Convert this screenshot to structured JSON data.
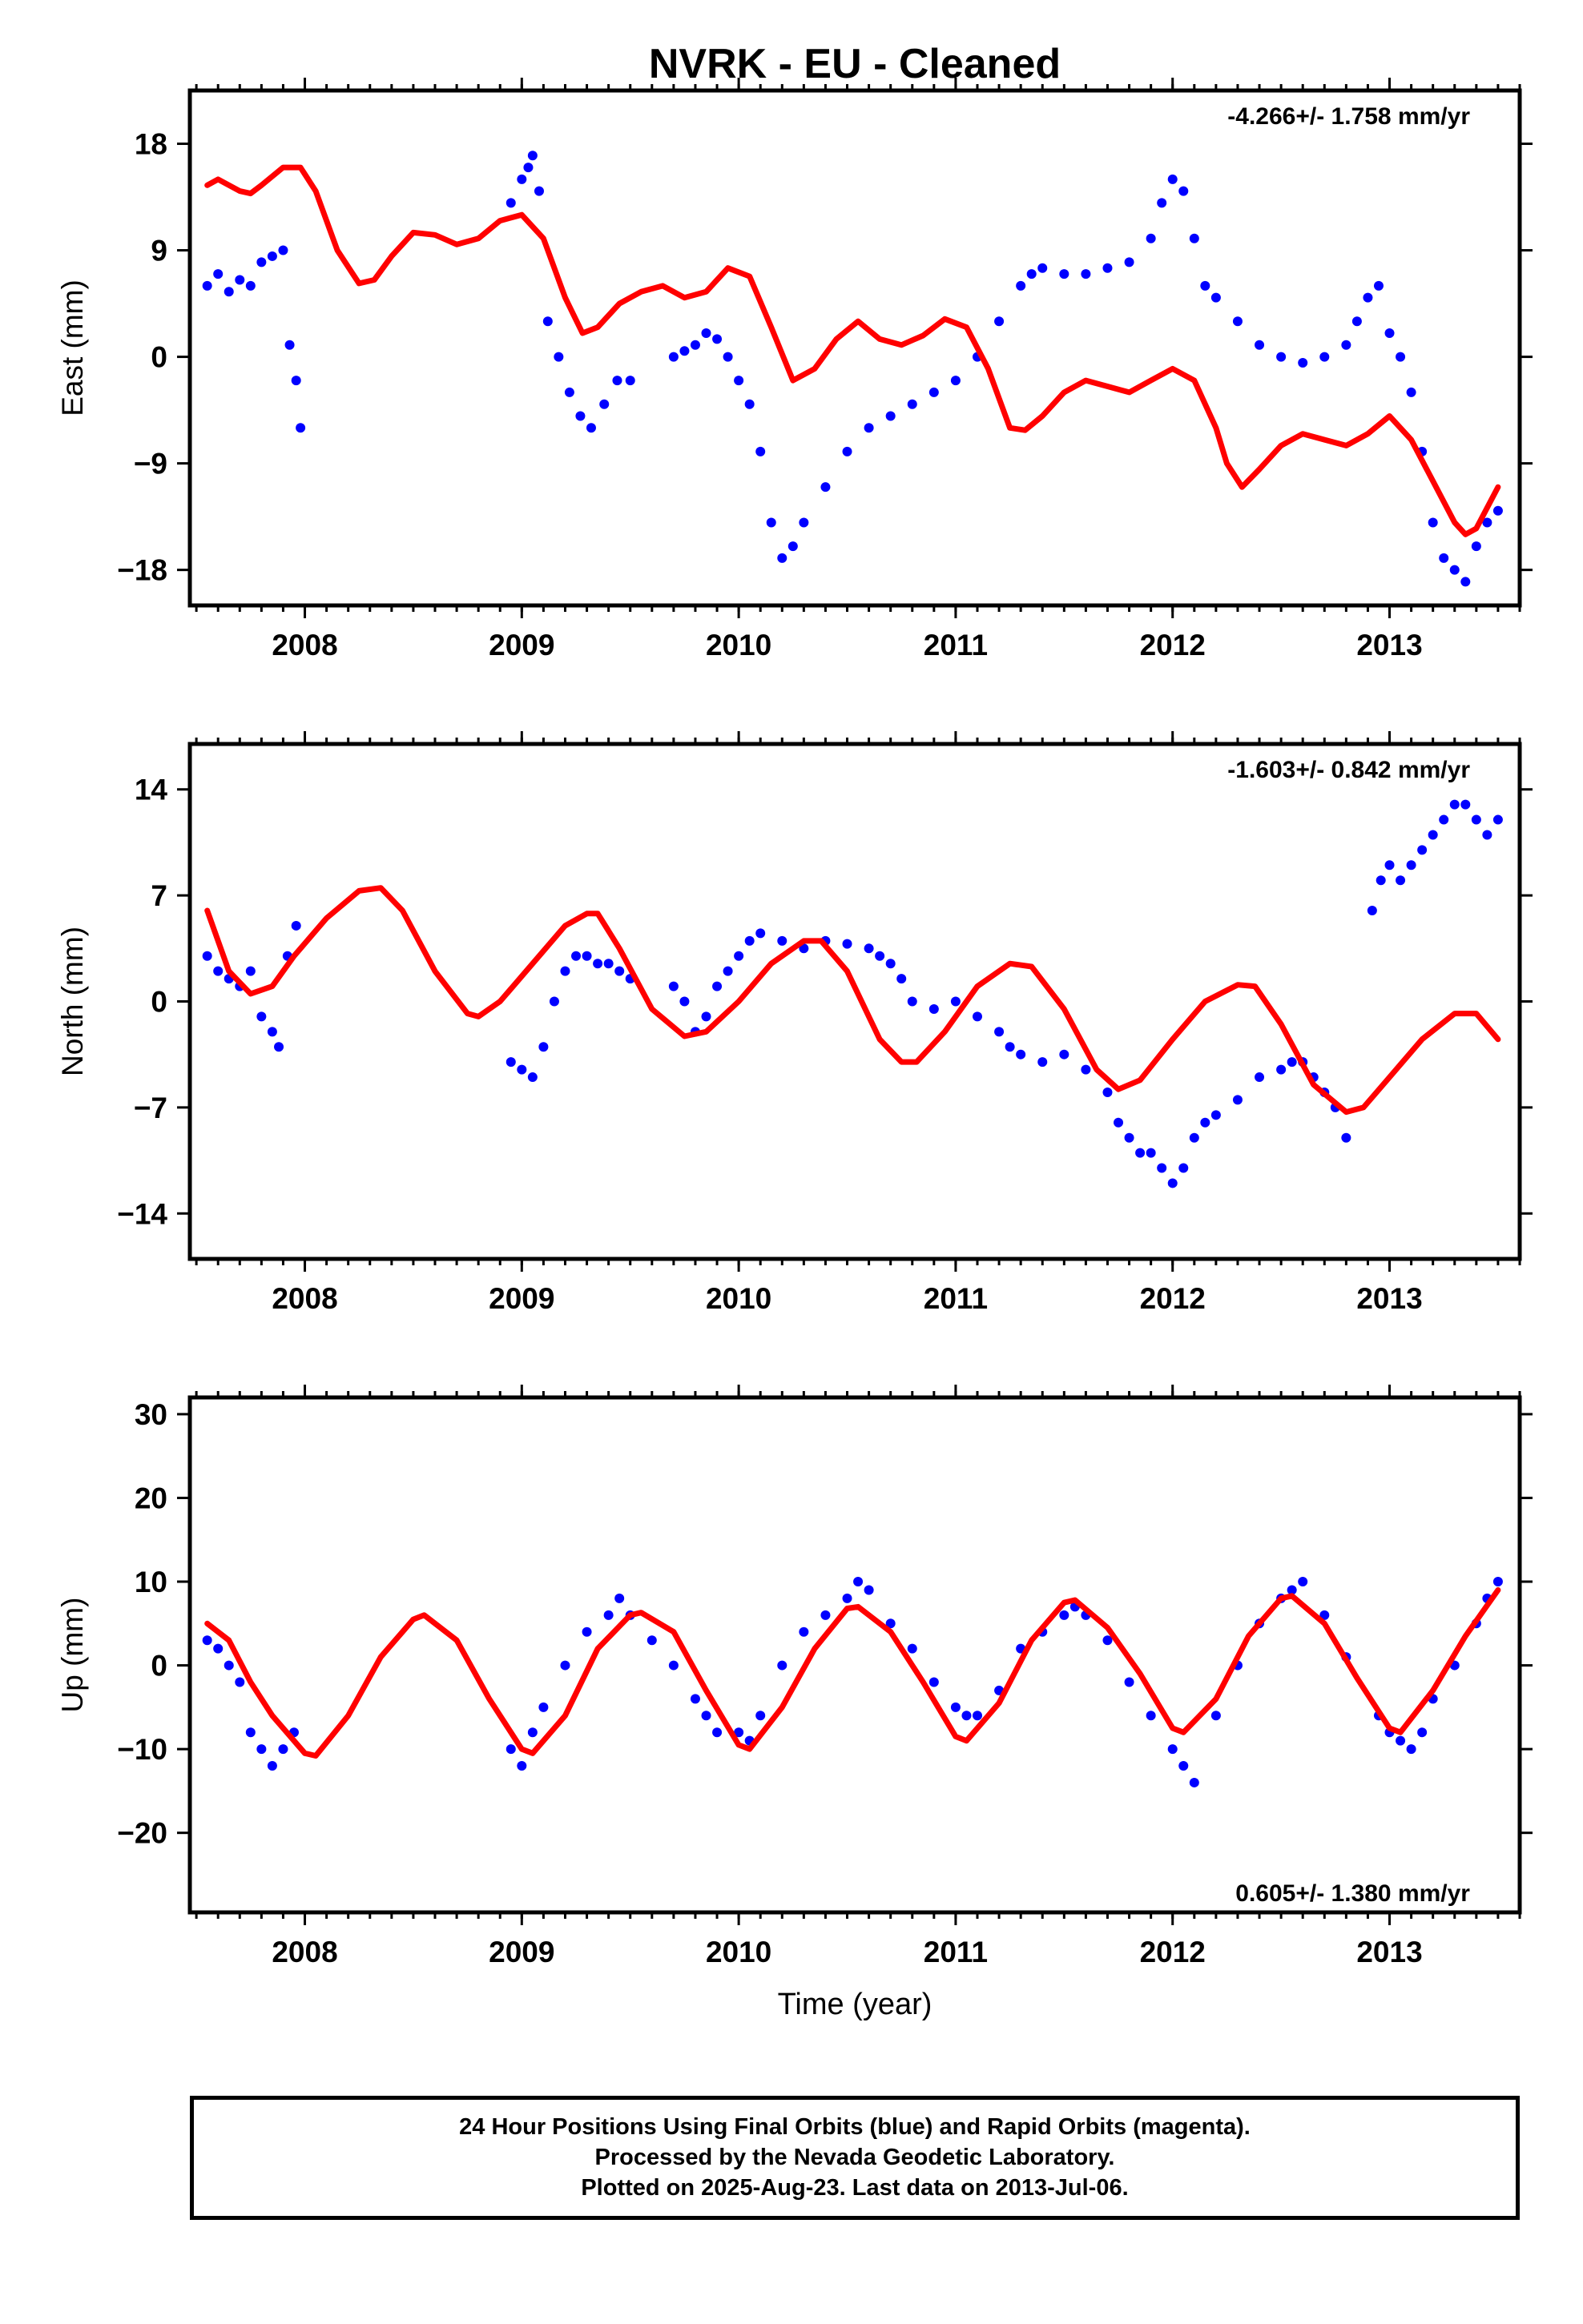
{
  "title": "NVRK  - EU - Cleaned",
  "xlabel": "Time (year)",
  "colors": {
    "data": "#0000ff",
    "model": "#ff0000",
    "axes": "#000000"
  },
  "caption": {
    "line1": "24 Hour Positions Using Final Orbits (blue) and Rapid Orbits (magenta).",
    "line2": "Processed by the Nevada Geodetic Laboratory.",
    "line3": "Plotted on 2025-Aug-23. Last data on 2013-Jul-06."
  },
  "chart_data": [
    {
      "type": "scatter",
      "panel": "east",
      "ylabel": "East (mm)",
      "rate_label": "-4.266+/- 1.758 mm/yr",
      "rate_label_position": "top-right",
      "xlim": [
        2007.47,
        2013.6
      ],
      "ylim": [
        -21,
        22.5
      ],
      "x_ticks": [
        2008,
        2009,
        2010,
        2011,
        2012,
        2013
      ],
      "y_ticks": [
        18,
        9,
        0,
        -9,
        -18
      ],
      "y_tick_labels": [
        "18",
        "9",
        "0",
        "−9",
        "−18"
      ],
      "grid": false,
      "series": [
        {
          "role": "observed",
          "marker": "dot",
          "color": "#0000ff",
          "x": [
            2007.55,
            2007.6,
            2007.65,
            2007.7,
            2007.75,
            2007.8,
            2007.85,
            2007.9,
            2007.93,
            2007.96,
            2007.98,
            2008.95,
            2009.0,
            2009.03,
            2009.05,
            2009.08,
            2009.12,
            2009.17,
            2009.22,
            2009.27,
            2009.32,
            2009.38,
            2009.44,
            2009.5,
            2009.7,
            2009.75,
            2009.8,
            2009.85,
            2009.9,
            2009.95,
            2010.0,
            2010.05,
            2010.1,
            2010.15,
            2010.2,
            2010.25,
            2010.3,
            2010.4,
            2010.5,
            2010.6,
            2010.7,
            2010.8,
            2010.9,
            2011.0,
            2011.1,
            2011.2,
            2011.3,
            2011.35,
            2011.4,
            2011.5,
            2011.6,
            2011.7,
            2011.8,
            2011.9,
            2011.95,
            2012.0,
            2012.05,
            2012.1,
            2012.15,
            2012.2,
            2012.3,
            2012.4,
            2012.5,
            2012.6,
            2012.7,
            2012.8,
            2012.85,
            2012.9,
            2012.95,
            2013.0,
            2013.05,
            2013.1,
            2013.15,
            2013.2,
            2013.25,
            2013.3,
            2013.35,
            2013.4,
            2013.45,
            2013.5
          ],
          "y": [
            6,
            7,
            5.5,
            6.5,
            6,
            8,
            8.5,
            9,
            1,
            -2,
            -6,
            13,
            15,
            16,
            17,
            14,
            3,
            0,
            -3,
            -5,
            -6,
            -4,
            -2,
            -2,
            0,
            0.5,
            1,
            2,
            1.5,
            0,
            -2,
            -4,
            -8,
            -14,
            -17,
            -16,
            -14,
            -11,
            -8,
            -6,
            -5,
            -4,
            -3,
            -2,
            0,
            3,
            6,
            7,
            7.5,
            7,
            7,
            7.5,
            8,
            10,
            13,
            15,
            14,
            10,
            6,
            5,
            3,
            1,
            0,
            -0.5,
            0,
            1,
            3,
            5,
            6,
            2,
            0,
            -3,
            -8,
            -14,
            -17,
            -18,
            -19,
            -16,
            -14,
            -13
          ]
        },
        {
          "role": "model",
          "color": "#ff0000",
          "x": [
            2007.55,
            2007.6,
            2007.7,
            2007.75,
            2007.8,
            2007.9,
            2007.98,
            2008.05,
            2008.15,
            2008.25,
            2008.32,
            2008.4,
            2008.5,
            2008.6,
            2008.7,
            2008.8,
            2008.9,
            2009.0,
            2009.1,
            2009.2,
            2009.28,
            2009.35,
            2009.45,
            2009.55,
            2009.65,
            2009.75,
            2009.85,
            2009.95,
            2010.05,
            2010.15,
            2010.25,
            2010.35,
            2010.45,
            2010.55,
            2010.65,
            2010.75,
            2010.85,
            2010.95,
            2011.05,
            2011.15,
            2011.25,
            2011.32,
            2011.4,
            2011.5,
            2011.6,
            2011.7,
            2011.8,
            2011.9,
            2012.0,
            2012.1,
            2012.2,
            2012.25,
            2012.32,
            2012.4,
            2012.5,
            2012.6,
            2012.7,
            2012.8,
            2012.9,
            2013.0,
            2013.1,
            2013.2,
            2013.3,
            2013.35,
            2013.4,
            2013.5
          ],
          "y": [
            14.5,
            15,
            14,
            13.8,
            14.5,
            16,
            16,
            14,
            9,
            6.2,
            6.5,
            8.5,
            10.5,
            10.3,
            9.5,
            10,
            11.5,
            12,
            10,
            5,
            2,
            2.5,
            4.5,
            5.5,
            6,
            5,
            5.5,
            7.5,
            6.8,
            2.5,
            -2,
            -1,
            1.5,
            3,
            1.5,
            1,
            1.8,
            3.2,
            2.5,
            -1,
            -6,
            -6.2,
            -5,
            -3,
            -2,
            -2.5,
            -3,
            -2,
            -1,
            -2,
            -6,
            -9,
            -11,
            -9.5,
            -7.5,
            -6.5,
            -7,
            -7.5,
            -6.5,
            -5,
            -7,
            -10.5,
            -14,
            -15,
            -14.5,
            -11
          ]
        }
      ]
    },
    {
      "type": "scatter",
      "panel": "north",
      "ylabel": "North (mm)",
      "rate_label": "-1.603+/- 0.842 mm/yr",
      "rate_label_position": "top-right",
      "xlim": [
        2007.47,
        2013.6
      ],
      "ylim": [
        -17,
        17
      ],
      "x_ticks": [
        2008,
        2009,
        2010,
        2011,
        2012,
        2013
      ],
      "y_ticks": [
        14,
        7,
        0,
        -7,
        -14
      ],
      "y_tick_labels": [
        "14",
        "7",
        "0",
        "−7",
        "−14"
      ],
      "grid": false,
      "series": [
        {
          "role": "observed",
          "marker": "dot",
          "color": "#0000ff",
          "x": [
            2007.55,
            2007.6,
            2007.65,
            2007.7,
            2007.75,
            2007.8,
            2007.85,
            2007.88,
            2007.92,
            2007.96,
            2008.95,
            2009.0,
            2009.05,
            2009.1,
            2009.15,
            2009.2,
            2009.25,
            2009.3,
            2009.35,
            2009.4,
            2009.45,
            2009.5,
            2009.7,
            2009.75,
            2009.8,
            2009.85,
            2009.9,
            2009.95,
            2010.0,
            2010.05,
            2010.1,
            2010.2,
            2010.3,
            2010.4,
            2010.5,
            2010.6,
            2010.65,
            2010.7,
            2010.75,
            2010.8,
            2010.9,
            2011.0,
            2011.1,
            2011.2,
            2011.25,
            2011.3,
            2011.4,
            2011.5,
            2011.6,
            2011.7,
            2011.75,
            2011.8,
            2011.85,
            2011.9,
            2011.95,
            2012.0,
            2012.05,
            2012.1,
            2012.15,
            2012.2,
            2012.3,
            2012.4,
            2012.5,
            2012.55,
            2012.6,
            2012.65,
            2012.7,
            2012.75,
            2012.8,
            2012.92,
            2012.96,
            2013.0,
            2013.05,
            2013.1,
            2013.15,
            2013.2,
            2013.25,
            2013.3,
            2013.35,
            2013.4,
            2013.45,
            2013.5
          ],
          "y": [
            3,
            2,
            1.5,
            1,
            2,
            -1,
            -2,
            -3,
            3,
            5,
            -4,
            -4.5,
            -5,
            -3,
            0,
            2,
            3,
            3,
            2.5,
            2.5,
            2,
            1.5,
            1,
            0,
            -2,
            -1,
            1,
            2,
            3,
            4,
            4.5,
            4,
            3.5,
            4,
            3.8,
            3.5,
            3,
            2.5,
            1.5,
            0,
            -0.5,
            0,
            -1,
            -2,
            -3,
            -3.5,
            -4,
            -3.5,
            -4.5,
            -6,
            -8,
            -9,
            -10,
            -10,
            -11,
            -12,
            -11,
            -9,
            -8,
            -7.5,
            -6.5,
            -5,
            -4.5,
            -4,
            -4,
            -5,
            -6,
            -7,
            -9,
            6,
            8,
            9,
            8,
            9,
            10,
            11,
            12,
            13,
            13,
            12,
            11,
            12
          ]
        },
        {
          "role": "model",
          "color": "#ff0000",
          "x": [
            2007.55,
            2007.65,
            2007.75,
            2007.85,
            2007.95,
            2008.1,
            2008.25,
            2008.35,
            2008.45,
            2008.6,
            2008.75,
            2008.8,
            2008.9,
            2009.05,
            2009.2,
            2009.3,
            2009.35,
            2009.45,
            2009.6,
            2009.75,
            2009.85,
            2010.0,
            2010.15,
            2010.3,
            2010.38,
            2010.5,
            2010.65,
            2010.75,
            2010.82,
            2010.95,
            2011.1,
            2011.25,
            2011.35,
            2011.5,
            2011.65,
            2011.75,
            2011.85,
            2012.0,
            2012.15,
            2012.3,
            2012.38,
            2012.5,
            2012.65,
            2012.8,
            2012.88,
            2013.0,
            2013.15,
            2013.3,
            2013.4,
            2013.5
          ],
          "y": [
            6,
            2,
            0.5,
            1,
            3,
            5.5,
            7.3,
            7.5,
            6,
            2,
            -0.8,
            -1,
            0,
            2.5,
            5,
            5.8,
            5.8,
            3.5,
            -0.5,
            -2.3,
            -2,
            0,
            2.5,
            4,
            4,
            2,
            -2.5,
            -4,
            -4,
            -2,
            1,
            2.5,
            2.3,
            -0.5,
            -4.5,
            -5.8,
            -5.2,
            -2.5,
            0,
            1.1,
            1,
            -1.5,
            -5.5,
            -7.3,
            -7,
            -5,
            -2.5,
            -0.8,
            -0.8,
            -2.5
          ]
        }
      ]
    },
    {
      "type": "scatter",
      "panel": "up",
      "ylabel": "Up (mm)",
      "rate_label": "0.605+/- 1.380 mm/yr",
      "rate_label_position": "bottom-right",
      "xlim": [
        2007.47,
        2013.6
      ],
      "ylim": [
        -29.5,
        32
      ],
      "x_ticks": [
        2008,
        2009,
        2010,
        2011,
        2012,
        2013
      ],
      "y_ticks": [
        30,
        20,
        10,
        0,
        -10,
        -20
      ],
      "y_tick_labels": [
        "30",
        "20",
        "10",
        "0",
        "−10",
        "−20"
      ],
      "grid": false,
      "series": [
        {
          "role": "observed",
          "marker": "dot",
          "color": "#0000ff",
          "x": [
            2007.55,
            2007.6,
            2007.65,
            2007.7,
            2007.75,
            2007.8,
            2007.85,
            2007.9,
            2007.95,
            2008.95,
            2009.0,
            2009.05,
            2009.1,
            2009.2,
            2009.3,
            2009.4,
            2009.45,
            2009.5,
            2009.6,
            2009.7,
            2009.8,
            2009.85,
            2009.9,
            2010.0,
            2010.05,
            2010.1,
            2010.2,
            2010.3,
            2010.4,
            2010.5,
            2010.55,
            2010.6,
            2010.7,
            2010.8,
            2010.9,
            2011.0,
            2011.05,
            2011.1,
            2011.2,
            2011.3,
            2011.4,
            2011.5,
            2011.55,
            2011.6,
            2011.7,
            2011.8,
            2011.9,
            2012.0,
            2012.05,
            2012.1,
            2012.2,
            2012.3,
            2012.4,
            2012.5,
            2012.55,
            2012.6,
            2012.7,
            2012.8,
            2012.95,
            2013.0,
            2013.05,
            2013.1,
            2013.15,
            2013.2,
            2013.3,
            2013.4,
            2013.45,
            2013.5
          ],
          "y": [
            3,
            2,
            0,
            -2,
            -8,
            -10,
            -12,
            -10,
            -8,
            -10,
            -12,
            -8,
            -5,
            0,
            4,
            6,
            8,
            6,
            3,
            0,
            -4,
            -6,
            -8,
            -8,
            -9,
            -6,
            0,
            4,
            6,
            8,
            10,
            9,
            5,
            2,
            -2,
            -5,
            -6,
            -6,
            -3,
            2,
            4,
            6,
            7,
            6,
            3,
            -2,
            -6,
            -10,
            -12,
            -14,
            -6,
            0,
            5,
            8,
            9,
            10,
            6,
            1,
            -6,
            -8,
            -9,
            -10,
            -8,
            -4,
            0,
            5,
            8,
            10
          ]
        },
        {
          "role": "model",
          "color": "#ff0000",
          "x": [
            2007.55,
            2007.65,
            2007.75,
            2007.85,
            2008.0,
            2008.05,
            2008.2,
            2008.35,
            2008.5,
            2008.55,
            2008.7,
            2008.85,
            2009.0,
            2009.05,
            2009.2,
            2009.35,
            2009.5,
            2009.55,
            2009.7,
            2009.85,
            2010.0,
            2010.05,
            2010.2,
            2010.35,
            2010.5,
            2010.55,
            2010.7,
            2010.85,
            2011.0,
            2011.05,
            2011.2,
            2011.35,
            2011.5,
            2011.55,
            2011.7,
            2011.85,
            2012.0,
            2012.05,
            2012.2,
            2012.35,
            2012.5,
            2012.55,
            2012.7,
            2012.85,
            2013.0,
            2013.05,
            2013.2,
            2013.35,
            2013.5
          ],
          "y": [
            5,
            3,
            -2,
            -6,
            -10.5,
            -10.8,
            -6,
            1,
            5.5,
            6,
            3,
            -4,
            -10,
            -10.5,
            -6,
            2,
            6,
            6.3,
            4,
            -3,
            -9.5,
            -10,
            -5,
            2,
            6.8,
            7,
            4,
            -2,
            -8.5,
            -9,
            -4.5,
            3,
            7.5,
            7.8,
            4.5,
            -1,
            -7.5,
            -8,
            -4,
            3.5,
            8,
            8.3,
            5,
            -1.5,
            -7.5,
            -8,
            -3,
            3.5,
            9
          ]
        }
      ]
    }
  ]
}
